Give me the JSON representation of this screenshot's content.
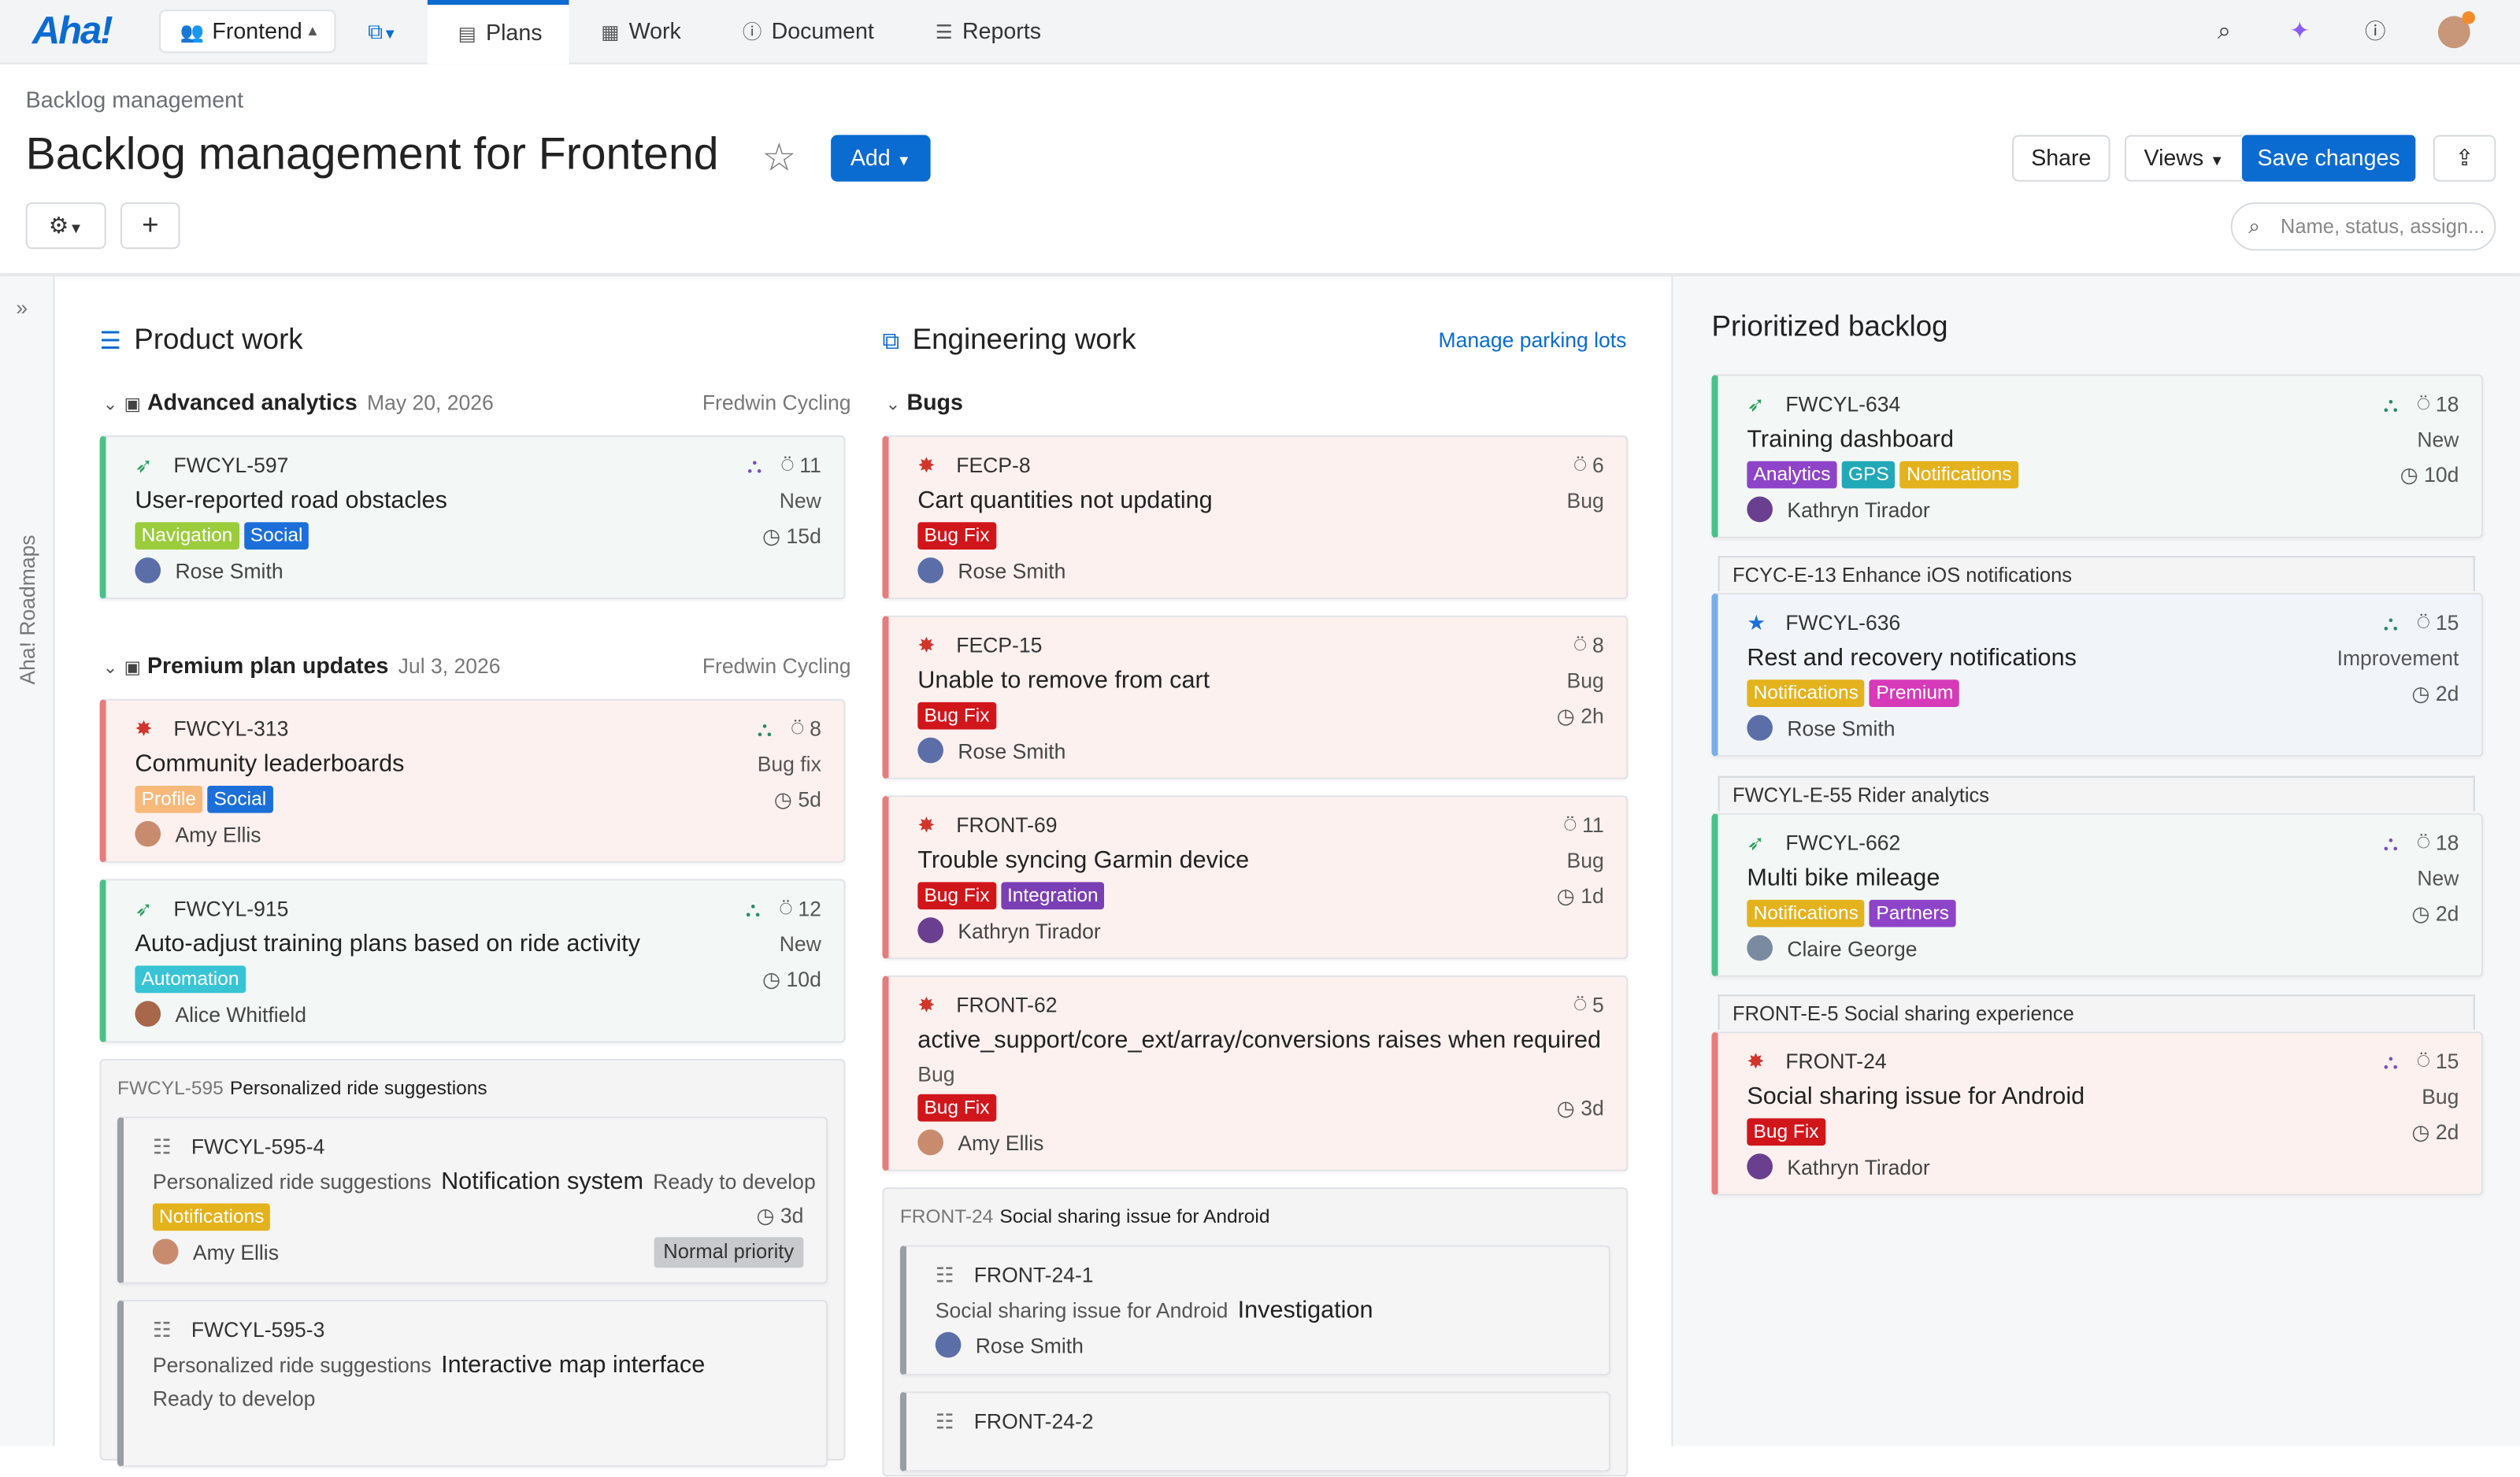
{
  "app": {
    "logo": "Aha!"
  },
  "topnav": {
    "workspace": "Frontend",
    "tabs": [
      {
        "label": "Plans",
        "active": true
      },
      {
        "label": "Work"
      },
      {
        "label": "Document"
      },
      {
        "label": "Reports"
      }
    ]
  },
  "breadcrumb": "Backlog management",
  "page_title": "Backlog management for Frontend",
  "header": {
    "add": "Add",
    "share": "Share",
    "views": "Views",
    "save": "Save changes",
    "search_placeholder": "Name, status, assign..."
  },
  "sidebar": {
    "label": "Aha! Roadmaps"
  },
  "columns": {
    "product": "Product work",
    "engineering": "Engineering work",
    "manage": "Manage parking lots",
    "prioritized": "Prioritized backlog"
  },
  "colors": {
    "accent": "#0a6bd1",
    "green": "#4dc08a",
    "red": "#e87c7c"
  },
  "product": {
    "groups": [
      {
        "name": "Advanced analytics",
        "date": "May 20, 2026",
        "owner": "Fredwin Cycling"
      },
      {
        "name": "Premium plan updates",
        "date": "Jul 3, 2026",
        "owner": "Fredwin Cycling"
      }
    ],
    "cards": [
      {
        "id": "FWCYL-597",
        "title": "User-reported road obstacles",
        "tags": [
          "Navigation",
          "Social"
        ],
        "person": "Rose Smith",
        "count": "11",
        "status": "New",
        "time": "15d"
      },
      {
        "id": "FWCYL-313",
        "title": "Community leaderboards",
        "tags": [
          "Profile",
          "Social"
        ],
        "person": "Amy Ellis",
        "count": "8",
        "status": "Bug fix",
        "time": "5d"
      },
      {
        "id": "FWCYL-915",
        "title": "Auto-adjust training plans based on ride activity",
        "tags": [
          "Automation"
        ],
        "person": "Alice Whitfield",
        "count": "12",
        "status": "New",
        "time": "10d"
      }
    ],
    "parking": {
      "id": "FWCYL-595",
      "name": "Personalized ride suggestions",
      "subs": [
        {
          "id": "FWCYL-595-4",
          "parent": "Personalized ride suggestions",
          "title": "Notification system",
          "state": "Ready to develop",
          "tag": "Notifications",
          "person": "Amy Ellis",
          "time": "3d",
          "priority": "Normal priority"
        },
        {
          "id": "FWCYL-595-3",
          "parent": "Personalized ride suggestions",
          "title": "Interactive map interface",
          "state": "Ready to develop"
        }
      ]
    }
  },
  "engineering": {
    "group": "Bugs",
    "cards": [
      {
        "id": "FECP-8",
        "title": "Cart quantities not updating",
        "tags": [
          "Bug Fix"
        ],
        "person": "Rose Smith",
        "count": "6",
        "status": "Bug"
      },
      {
        "id": "FECP-15",
        "title": "Unable to remove from cart",
        "tags": [
          "Bug Fix"
        ],
        "person": "Rose Smith",
        "count": "8",
        "status": "Bug",
        "time": "2h"
      },
      {
        "id": "FRONT-69",
        "title": "Trouble syncing Garmin device",
        "tags": [
          "Bug Fix",
          "Integration"
        ],
        "person": "Kathryn Tirador",
        "count": "11",
        "status": "Bug",
        "time": "1d"
      },
      {
        "id": "FRONT-62",
        "title": "active_support/core_ext/array/conversions raises when required",
        "sub": "Bug",
        "tags": [
          "Bug Fix"
        ],
        "person": "Amy Ellis",
        "count": "5",
        "time": "3d"
      }
    ],
    "parking": {
      "id": "FRONT-24",
      "name": "Social sharing issue for Android",
      "subs": [
        {
          "id": "FRONT-24-1",
          "parent": "Social sharing issue for Android",
          "title": "Investigation",
          "person": "Rose Smith"
        },
        {
          "id": "FRONT-24-2"
        }
      ]
    }
  },
  "prioritized": [
    {
      "epic": "",
      "id": "FWCYL-634",
      "title": "Training dashboard",
      "tags": [
        "Analytics",
        "GPS",
        "Notifications"
      ],
      "person": "Kathryn Tirador",
      "count": "18",
      "status": "New",
      "time": "10d"
    },
    {
      "epic": "FCYC-E-13 Enhance iOS notifications",
      "id": "FWCYL-636",
      "title": "Rest and recovery notifications",
      "tags": [
        "Notifications",
        "Premium"
      ],
      "person": "Rose Smith",
      "count": "15",
      "status": "Improvement",
      "time": "2d"
    },
    {
      "epic": "FWCYL-E-55 Rider analytics",
      "id": "FWCYL-662",
      "title": "Multi bike mileage",
      "tags": [
        "Notifications",
        "Partners"
      ],
      "person": "Claire George",
      "count": "18",
      "status": "New",
      "time": "2d"
    },
    {
      "epic": "FRONT-E-5 Social sharing experience",
      "id": "FRONT-24",
      "title": "Social sharing issue for Android",
      "tags": [
        "Bug Fix"
      ],
      "person": "Kathryn Tirador",
      "count": "15",
      "status": "Bug",
      "time": "2d"
    }
  ]
}
